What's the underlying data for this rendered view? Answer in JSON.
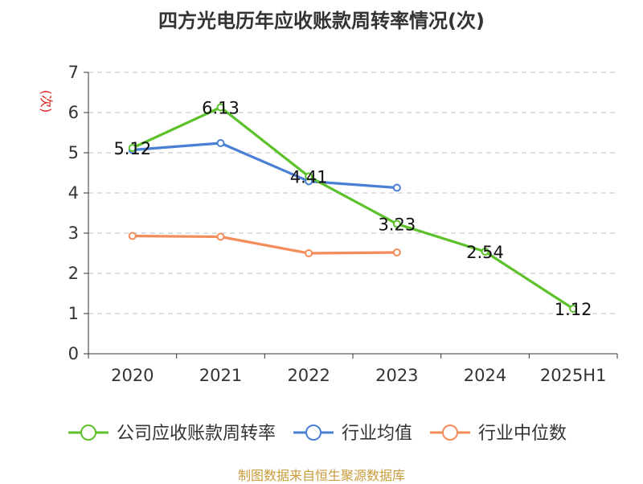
{
  "chart_data": {
    "type": "line",
    "title": "四方光电历年应收账款周转率情况(次)",
    "ylabel": "(次)",
    "xlabel": "",
    "categories": [
      "2020",
      "2021",
      "2022",
      "2023",
      "2024",
      "2025H1"
    ],
    "ylim": [
      0,
      7
    ],
    "yticks": [
      0,
      1,
      2,
      3,
      4,
      5,
      6,
      7
    ],
    "grid": true,
    "legend_position": "bottom",
    "series": [
      {
        "name": "公司应收账款周转率",
        "color": "#5cc12a",
        "values": [
          5.12,
          6.13,
          4.41,
          3.23,
          2.54,
          1.12
        ],
        "data_labels": [
          "5.12",
          "6.13",
          "4.41",
          "3.23",
          "2.54",
          "1.12"
        ]
      },
      {
        "name": "行业均值",
        "color": "#4a7fd6",
        "values": [
          5.07,
          5.24,
          4.29,
          4.13,
          null,
          null
        ]
      },
      {
        "name": "行业中位数",
        "color": "#f48c5a",
        "values": [
          2.93,
          2.91,
          2.5,
          2.52,
          null,
          null
        ]
      }
    ]
  },
  "source_text": "制图数据来自恒生聚源数据库",
  "colors": {
    "title": "#333333",
    "unit_label": "#e02020",
    "source": "#c89b3c",
    "grid": "#cccccc",
    "axis": "#333333"
  }
}
